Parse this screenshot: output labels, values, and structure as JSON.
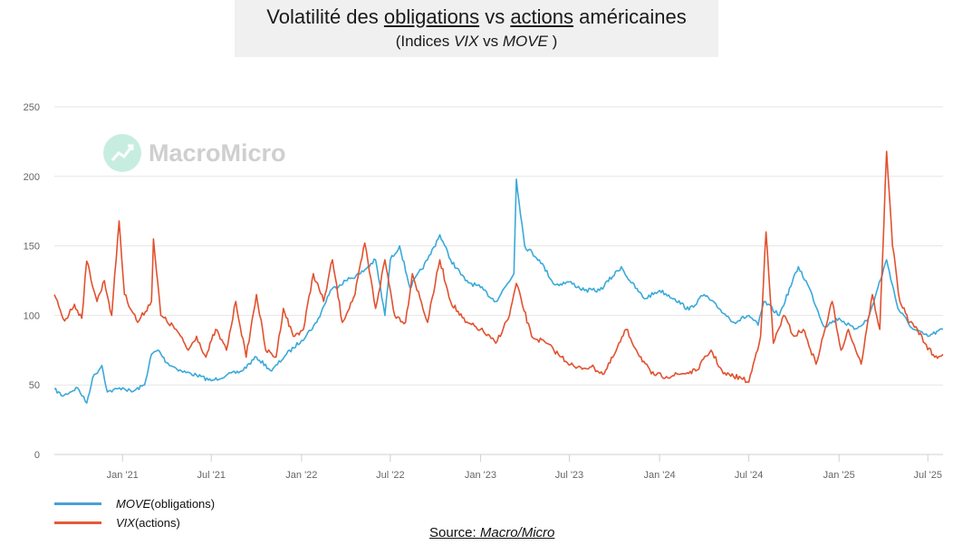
{
  "title": {
    "line1_parts": [
      "Volatilité des ",
      "obligations",
      " vs ",
      "actions",
      " américaines"
    ],
    "line2_parts": [
      "(Indices ",
      "VIX",
      "  vs ",
      "MOVE",
      " )"
    ]
  },
  "watermark": {
    "text": "MacroMicro",
    "icon": "chart-logo-icon"
  },
  "legend": [
    {
      "name": "MOVE",
      "suffix": "  (obligations)",
      "color": "#4a9fd6"
    },
    {
      "name": "VIX",
      "suffix": "  (actions)",
      "color": "#e55a36"
    }
  ],
  "source": {
    "label": "Source: ",
    "name": "Macro/Micro"
  },
  "colors": {
    "move": "#3aa9d9",
    "vix": "#e2512f",
    "grid": "#e6e6e6",
    "axis": "#d0d0d0",
    "tick": "#666666"
  },
  "chart_data": {
    "type": "line",
    "title": "Volatilité des obligations vs actions américaines",
    "subtitle": "(Indices VIX vs MOVE)",
    "xlabel": "",
    "ylabel": "",
    "ylim": [
      0,
      250
    ],
    "yticks": [
      0,
      50,
      100,
      150,
      200,
      250
    ],
    "xlim": [
      "2020-08-15",
      "2025-08-01"
    ],
    "xticks": [
      {
        "date": "2021-01-01",
        "label": "Jan '21"
      },
      {
        "date": "2021-07-01",
        "label": "Jul '21"
      },
      {
        "date": "2022-01-01",
        "label": "Jan '22"
      },
      {
        "date": "2022-07-01",
        "label": "Jul '22"
      },
      {
        "date": "2023-01-01",
        "label": "Jan '23"
      },
      {
        "date": "2023-07-01",
        "label": "Jul '23"
      },
      {
        "date": "2024-01-01",
        "label": "Jan '24"
      },
      {
        "date": "2024-07-01",
        "label": "Jul '24"
      },
      {
        "date": "2025-01-01",
        "label": "Jan '25"
      },
      {
        "date": "2025-07-01",
        "label": "Jul '25"
      }
    ],
    "grid": true,
    "legend_position": "bottom-left",
    "series": [
      {
        "name": "MOVE",
        "color": "#3aa9d9",
        "points": [
          [
            "2020-08-15",
            47
          ],
          [
            "2020-09-01",
            42
          ],
          [
            "2020-10-01",
            48
          ],
          [
            "2020-10-20",
            37
          ],
          [
            "2020-11-01",
            55
          ],
          [
            "2020-11-20",
            64
          ],
          [
            "2020-12-01",
            45
          ],
          [
            "2021-01-01",
            48
          ],
          [
            "2021-01-20",
            45
          ],
          [
            "2021-02-15",
            50
          ],
          [
            "2021-03-01",
            72
          ],
          [
            "2021-03-15",
            75
          ],
          [
            "2021-04-01",
            66
          ],
          [
            "2021-05-01",
            60
          ],
          [
            "2021-06-01",
            57
          ],
          [
            "2021-07-01",
            53
          ],
          [
            "2021-08-01",
            57
          ],
          [
            "2021-09-01",
            60
          ],
          [
            "2021-10-01",
            70
          ],
          [
            "2021-11-01",
            60
          ],
          [
            "2021-12-01",
            72
          ],
          [
            "2022-01-01",
            82
          ],
          [
            "2022-02-01",
            95
          ],
          [
            "2022-03-01",
            118
          ],
          [
            "2022-04-01",
            125
          ],
          [
            "2022-05-01",
            130
          ],
          [
            "2022-06-01",
            140
          ],
          [
            "2022-06-20",
            100
          ],
          [
            "2022-07-01",
            140
          ],
          [
            "2022-07-20",
            150
          ],
          [
            "2022-08-10",
            120
          ],
          [
            "2022-09-15",
            140
          ],
          [
            "2022-10-10",
            158
          ],
          [
            "2022-11-01",
            140
          ],
          [
            "2022-12-01",
            125
          ],
          [
            "2023-01-01",
            120
          ],
          [
            "2023-02-01",
            110
          ],
          [
            "2023-03-10",
            130
          ],
          [
            "2023-03-15",
            198
          ],
          [
            "2023-04-01",
            150
          ],
          [
            "2023-05-01",
            140
          ],
          [
            "2023-06-01",
            122
          ],
          [
            "2023-07-01",
            124
          ],
          [
            "2023-08-01",
            118
          ],
          [
            "2023-09-01",
            118
          ],
          [
            "2023-10-15",
            135
          ],
          [
            "2023-11-01",
            125
          ],
          [
            "2023-12-01",
            112
          ],
          [
            "2024-01-01",
            118
          ],
          [
            "2024-02-01",
            112
          ],
          [
            "2024-03-01",
            104
          ],
          [
            "2024-04-01",
            115
          ],
          [
            "2024-05-01",
            105
          ],
          [
            "2024-06-01",
            95
          ],
          [
            "2024-07-01",
            100
          ],
          [
            "2024-07-20",
            93
          ],
          [
            "2024-08-01",
            110
          ],
          [
            "2024-09-01",
            100
          ],
          [
            "2024-10-10",
            135
          ],
          [
            "2024-11-01",
            120
          ],
          [
            "2024-12-01",
            92
          ],
          [
            "2025-01-01",
            98
          ],
          [
            "2025-02-01",
            90
          ],
          [
            "2025-03-01",
            97
          ],
          [
            "2025-04-08",
            140
          ],
          [
            "2025-05-01",
            105
          ],
          [
            "2025-06-01",
            90
          ],
          [
            "2025-07-01",
            85
          ],
          [
            "2025-08-01",
            90
          ]
        ]
      },
      {
        "name": "VIX",
        "color": "#e2512f",
        "points": [
          [
            "2020-08-15",
            115
          ],
          [
            "2020-09-05",
            96
          ],
          [
            "2020-09-25",
            108
          ],
          [
            "2020-10-10",
            98
          ],
          [
            "2020-10-20",
            139
          ],
          [
            "2020-11-10",
            110
          ],
          [
            "2020-11-25",
            125
          ],
          [
            "2020-12-10",
            100
          ],
          [
            "2020-12-25",
            168
          ],
          [
            "2021-01-05",
            115
          ],
          [
            "2021-02-01",
            95
          ],
          [
            "2021-03-01",
            110
          ],
          [
            "2021-03-05",
            155
          ],
          [
            "2021-03-20",
            100
          ],
          [
            "2021-04-20",
            90
          ],
          [
            "2021-05-15",
            75
          ],
          [
            "2021-06-01",
            85
          ],
          [
            "2021-06-20",
            70
          ],
          [
            "2021-07-10",
            90
          ],
          [
            "2021-08-01",
            75
          ],
          [
            "2021-08-20",
            110
          ],
          [
            "2021-09-10",
            70
          ],
          [
            "2021-10-01",
            115
          ],
          [
            "2021-10-20",
            75
          ],
          [
            "2021-11-10",
            70
          ],
          [
            "2021-11-25",
            105
          ],
          [
            "2021-12-15",
            85
          ],
          [
            "2022-01-05",
            90
          ],
          [
            "2022-01-25",
            130
          ],
          [
            "2022-02-15",
            110
          ],
          [
            "2022-03-05",
            140
          ],
          [
            "2022-03-25",
            95
          ],
          [
            "2022-04-20",
            115
          ],
          [
            "2022-05-10",
            152
          ],
          [
            "2022-06-01",
            105
          ],
          [
            "2022-06-20",
            140
          ],
          [
            "2022-07-10",
            100
          ],
          [
            "2022-08-01",
            95
          ],
          [
            "2022-08-15",
            130
          ],
          [
            "2022-09-15",
            95
          ],
          [
            "2022-10-10",
            140
          ],
          [
            "2022-11-01",
            110
          ],
          [
            "2022-12-01",
            95
          ],
          [
            "2023-01-01",
            90
          ],
          [
            "2023-02-01",
            80
          ],
          [
            "2023-03-01",
            100
          ],
          [
            "2023-03-15",
            123
          ],
          [
            "2023-04-15",
            85
          ],
          [
            "2023-05-15",
            80
          ],
          [
            "2023-06-15",
            70
          ],
          [
            "2023-07-15",
            62
          ],
          [
            "2023-08-15",
            63
          ],
          [
            "2023-09-10",
            58
          ],
          [
            "2023-10-01",
            72
          ],
          [
            "2023-10-25",
            90
          ],
          [
            "2023-11-15",
            75
          ],
          [
            "2023-12-15",
            58
          ],
          [
            "2024-01-15",
            56
          ],
          [
            "2024-02-15",
            58
          ],
          [
            "2024-03-15",
            60
          ],
          [
            "2024-04-15",
            75
          ],
          [
            "2024-05-10",
            58
          ],
          [
            "2024-06-15",
            55
          ],
          [
            "2024-07-01",
            52
          ],
          [
            "2024-07-25",
            85
          ],
          [
            "2024-08-05",
            160
          ],
          [
            "2024-08-20",
            80
          ],
          [
            "2024-09-10",
            100
          ],
          [
            "2024-10-01",
            85
          ],
          [
            "2024-10-20",
            90
          ],
          [
            "2024-11-15",
            65
          ],
          [
            "2024-12-18",
            110
          ],
          [
            "2025-01-05",
            75
          ],
          [
            "2025-01-20",
            90
          ],
          [
            "2025-02-15",
            65
          ],
          [
            "2025-03-10",
            115
          ],
          [
            "2025-03-25",
            90
          ],
          [
            "2025-04-08",
            218
          ],
          [
            "2025-04-20",
            150
          ],
          [
            "2025-05-05",
            110
          ],
          [
            "2025-05-25",
            95
          ],
          [
            "2025-06-10",
            90
          ],
          [
            "2025-06-25",
            80
          ],
          [
            "2025-07-15",
            70
          ],
          [
            "2025-08-01",
            72
          ]
        ]
      }
    ]
  }
}
